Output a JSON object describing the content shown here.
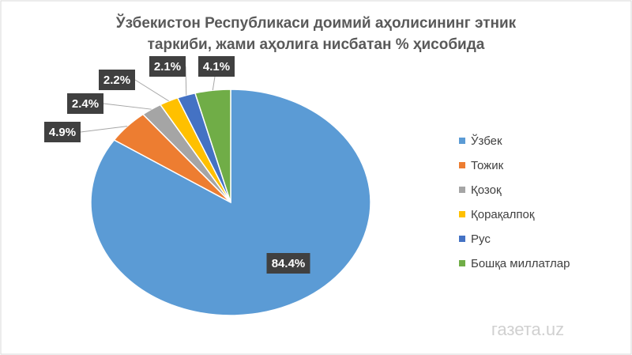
{
  "chart_data": {
    "type": "pie",
    "title": [
      "Ўзбекистон Республикаси доимий аҳолисининг этник",
      "таркиби, жами аҳолига нисбатан % ҳисобида"
    ],
    "categories": [
      "Ўзбек",
      "Тожик",
      "Қозоқ",
      "Қорақалпоқ",
      "Рус",
      "Бошқа миллатлар"
    ],
    "values": [
      84.4,
      4.9,
      2.4,
      2.2,
      2.1,
      4.1
    ],
    "value_labels": [
      "84.4%",
      "4.9%",
      "2.4%",
      "2.2%",
      "2.1%",
      "4.1%"
    ],
    "colors": [
      "#5b9bd5",
      "#ed7d31",
      "#a5a5a5",
      "#ffc000",
      "#4472c4",
      "#70ad47"
    ],
    "legend": "right",
    "watermark": "газета.uz"
  }
}
